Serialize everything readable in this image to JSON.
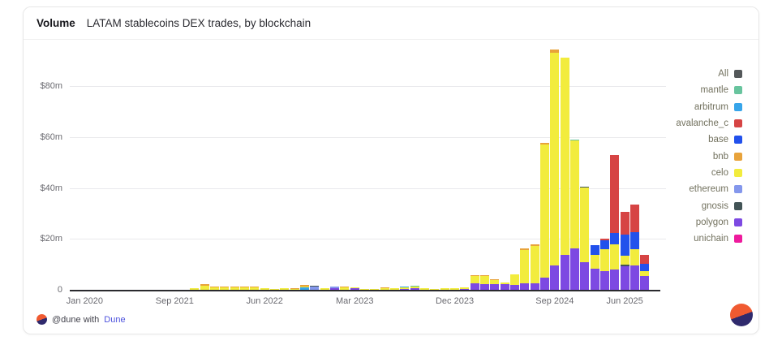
{
  "header": {
    "title": "Volume",
    "subtitle": "LATAM stablecoins DEX trades, by blockchain"
  },
  "footer": {
    "attribution": "@dune with",
    "brand_link": "Dune"
  },
  "legend": {
    "items": [
      {
        "key": "all",
        "label": "All",
        "color": "#54585a"
      },
      {
        "key": "mantle",
        "label": "mantle",
        "color": "#68c49e"
      },
      {
        "key": "arbitrum",
        "label": "arbitrum",
        "color": "#37a5ea"
      },
      {
        "key": "avalanche_c",
        "label": "avalanche_c",
        "color": "#d64444"
      },
      {
        "key": "base",
        "label": "base",
        "color": "#2251ec"
      },
      {
        "key": "bnb",
        "label": "bnb",
        "color": "#e8a33b"
      },
      {
        "key": "celo",
        "label": "celo",
        "color": "#f2ec3d"
      },
      {
        "key": "ethereum",
        "label": "ethereum",
        "color": "#8497ec"
      },
      {
        "key": "gnosis",
        "label": "gnosis",
        "color": "#425456"
      },
      {
        "key": "polygon",
        "label": "polygon",
        "color": "#7d49e2"
      },
      {
        "key": "unichain",
        "label": "unichain",
        "color": "#ee1b9d"
      }
    ]
  },
  "chart_data": {
    "type": "bar",
    "stacked": true,
    "title": "Volume — LATAM stablecoins DEX trades, by blockchain",
    "unit": "$m",
    "ylim": [
      0,
      96
    ],
    "grid": true,
    "legend_position": "right",
    "colors": {
      "mantle": "#68c49e",
      "arbitrum": "#37a5ea",
      "avalanche_c": "#d64444",
      "base": "#2251ec",
      "bnb": "#e8a33b",
      "celo": "#f2ec3d",
      "ethereum": "#8497ec",
      "gnosis": "#425456",
      "polygon": "#7d49e2",
      "unichain": "#ee1b9d"
    },
    "y_ticks": [
      {
        "label": "$80m",
        "value": 80
      },
      {
        "label": "$60m",
        "value": 60
      },
      {
        "label": "$40m",
        "value": 40
      },
      {
        "label": "$20m",
        "value": 20
      },
      {
        "label": "0",
        "value": 0
      }
    ],
    "x_ticks": [
      {
        "label": "Jan 2020",
        "slot": 1
      },
      {
        "label": "Sep 2021",
        "slot": 10
      },
      {
        "label": "Jun 2022",
        "slot": 19
      },
      {
        "label": "Mar 2023",
        "slot": 28
      },
      {
        "label": "Dec 2023",
        "slot": 38
      },
      {
        "label": "Sep 2024",
        "slot": 48
      },
      {
        "label": "Jun 2025",
        "slot": 55
      }
    ],
    "total_slots": 60,
    "bars": [
      {
        "slot": 12,
        "segments": [
          [
            "celo",
            0.6
          ]
        ]
      },
      {
        "slot": 13,
        "segments": [
          [
            "celo",
            1.6
          ],
          [
            "bnb",
            0.5
          ]
        ]
      },
      {
        "slot": 14,
        "segments": [
          [
            "celo",
            1.0
          ],
          [
            "bnb",
            0.4
          ]
        ]
      },
      {
        "slot": 15,
        "segments": [
          [
            "celo",
            1.0
          ],
          [
            "bnb",
            0.3
          ]
        ]
      },
      {
        "slot": 16,
        "segments": [
          [
            "celo",
            1.1
          ],
          [
            "bnb",
            0.3
          ]
        ]
      },
      {
        "slot": 17,
        "segments": [
          [
            "celo",
            1.0
          ],
          [
            "bnb",
            0.3
          ]
        ]
      },
      {
        "slot": 18,
        "segments": [
          [
            "celo",
            0.8
          ],
          [
            "bnb",
            0.2
          ]
        ]
      },
      {
        "slot": 19,
        "segments": [
          [
            "celo",
            0.6
          ]
        ]
      },
      {
        "slot": 20,
        "segments": [
          [
            "celo",
            0.3
          ]
        ]
      },
      {
        "slot": 21,
        "segments": [
          [
            "celo",
            0.5
          ]
        ]
      },
      {
        "slot": 22,
        "segments": [
          [
            "celo",
            0.4
          ],
          [
            "bnb",
            0.2
          ]
        ]
      },
      {
        "slot": 23,
        "segments": [
          [
            "arbitrum",
            1.0
          ],
          [
            "celo",
            0.4
          ],
          [
            "bnb",
            0.6
          ]
        ]
      },
      {
        "slot": 24,
        "segments": [
          [
            "ethereum",
            1.2
          ],
          [
            "gnosis",
            0.2
          ]
        ]
      },
      {
        "slot": 25,
        "segments": [
          [
            "celo",
            0.6
          ]
        ]
      },
      {
        "slot": 26,
        "segments": [
          [
            "polygon",
            0.5
          ],
          [
            "ethereum",
            0.8
          ]
        ]
      },
      {
        "slot": 27,
        "segments": [
          [
            "celo",
            0.8
          ],
          [
            "bnb",
            0.3
          ]
        ]
      },
      {
        "slot": 28,
        "segments": [
          [
            "polygon",
            0.7
          ],
          [
            "celo",
            0.4
          ]
        ]
      },
      {
        "slot": 29,
        "segments": [
          [
            "celo",
            0.3
          ]
        ]
      },
      {
        "slot": 30,
        "segments": [
          [
            "celo",
            0.3
          ]
        ]
      },
      {
        "slot": 31,
        "segments": [
          [
            "celo",
            0.5
          ],
          [
            "bnb",
            0.2
          ]
        ]
      },
      {
        "slot": 32,
        "segments": [
          [
            "celo",
            0.6
          ]
        ]
      },
      {
        "slot": 33,
        "segments": [
          [
            "polygon",
            0.4
          ],
          [
            "celo",
            0.5
          ],
          [
            "arbitrum",
            0.3
          ]
        ]
      },
      {
        "slot": 34,
        "segments": [
          [
            "polygon",
            0.6
          ],
          [
            "celo",
            0.7
          ],
          [
            "mantle",
            0.3
          ]
        ]
      },
      {
        "slot": 35,
        "segments": [
          [
            "celo",
            0.5
          ]
        ]
      },
      {
        "slot": 36,
        "segments": [
          [
            "celo",
            0.3
          ]
        ]
      },
      {
        "slot": 37,
        "segments": [
          [
            "celo",
            0.6
          ]
        ]
      },
      {
        "slot": 38,
        "segments": [
          [
            "celo",
            0.6
          ]
        ]
      },
      {
        "slot": 39,
        "segments": [
          [
            "polygon",
            0.4
          ],
          [
            "celo",
            0.4
          ]
        ]
      },
      {
        "slot": 40,
        "segments": [
          [
            "polygon",
            2.6
          ],
          [
            "celo",
            2.7
          ],
          [
            "bnb",
            0.5
          ]
        ]
      },
      {
        "slot": 41,
        "segments": [
          [
            "polygon",
            2.1
          ],
          [
            "celo",
            3.2
          ],
          [
            "bnb",
            0.6
          ]
        ]
      },
      {
        "slot": 42,
        "segments": [
          [
            "polygon",
            2.3
          ],
          [
            "celo",
            1.6
          ],
          [
            "bnb",
            0.3
          ]
        ]
      },
      {
        "slot": 43,
        "segments": [
          [
            "polygon",
            2.3
          ],
          [
            "celo",
            0.7
          ]
        ]
      },
      {
        "slot": 44,
        "segments": [
          [
            "polygon",
            2.0
          ],
          [
            "celo",
            4.2
          ]
        ]
      },
      {
        "slot": 45,
        "segments": [
          [
            "polygon",
            2.7
          ],
          [
            "celo",
            12.8
          ],
          [
            "bnb",
            0.8
          ]
        ]
      },
      {
        "slot": 46,
        "segments": [
          [
            "polygon",
            2.7
          ],
          [
            "celo",
            14.5
          ],
          [
            "bnb",
            0.8
          ]
        ]
      },
      {
        "slot": 47,
        "segments": [
          [
            "polygon",
            4.9
          ],
          [
            "celo",
            52.2
          ],
          [
            "bnb",
            0.5
          ]
        ]
      },
      {
        "slot": 48,
        "segments": [
          [
            "polygon",
            9.6
          ],
          [
            "celo",
            83.5
          ],
          [
            "bnb",
            1.3
          ]
        ]
      },
      {
        "slot": 49,
        "segments": [
          [
            "polygon",
            13.8
          ],
          [
            "celo",
            77.3
          ]
        ]
      },
      {
        "slot": 50,
        "segments": [
          [
            "polygon",
            16.3
          ],
          [
            "celo",
            42.4
          ],
          [
            "mantle",
            0.4
          ]
        ]
      },
      {
        "slot": 51,
        "segments": [
          [
            "polygon",
            10.9
          ],
          [
            "celo",
            29.2
          ],
          [
            "gnosis",
            0.5
          ]
        ]
      },
      {
        "slot": 52,
        "segments": [
          [
            "polygon",
            8.3
          ],
          [
            "celo",
            5.3
          ],
          [
            "base",
            3.9
          ]
        ]
      },
      {
        "slot": 53,
        "segments": [
          [
            "polygon",
            7.2
          ],
          [
            "celo",
            8.7
          ],
          [
            "base",
            3.5
          ],
          [
            "avalanche_c",
            0.8
          ]
        ]
      },
      {
        "slot": 54,
        "segments": [
          [
            "polygon",
            8.0
          ],
          [
            "celo",
            9.9
          ],
          [
            "base",
            4.5
          ],
          [
            "avalanche_c",
            30.5
          ]
        ]
      },
      {
        "slot": 55,
        "segments": [
          [
            "polygon",
            9.4
          ],
          [
            "gnosis",
            0.4
          ],
          [
            "celo",
            3.7
          ],
          [
            "base",
            8.2
          ],
          [
            "avalanche_c",
            8.8
          ]
        ]
      },
      {
        "slot": 56,
        "segments": [
          [
            "polygon",
            9.6
          ],
          [
            "celo",
            6.2
          ],
          [
            "base",
            6.9
          ],
          [
            "avalanche_c",
            10.8
          ]
        ]
      },
      {
        "slot": 57,
        "segments": [
          [
            "polygon",
            5.3
          ],
          [
            "celo",
            1.9
          ],
          [
            "base",
            3.0
          ],
          [
            "avalanche_c",
            3.4
          ]
        ]
      }
    ]
  }
}
